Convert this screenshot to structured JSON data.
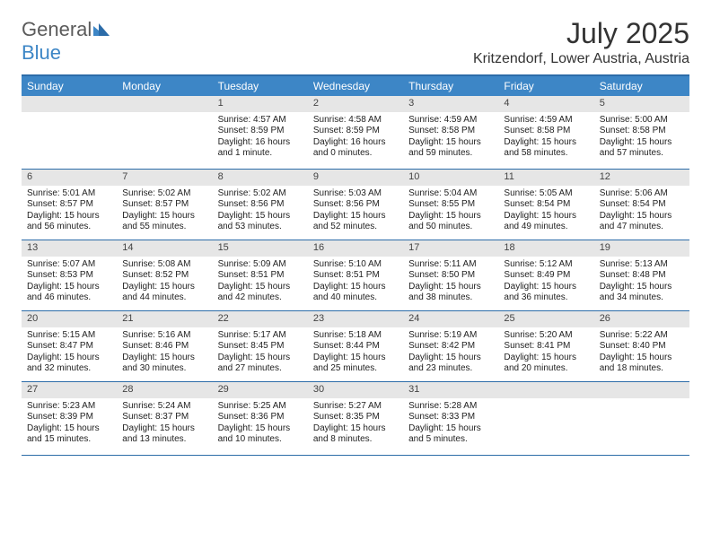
{
  "logo": {
    "word1": "General",
    "word2": "Blue",
    "word1_color": "#5b5b5b",
    "word2_color": "#3d86c6",
    "triangle_color": "#3d86c6"
  },
  "title": "July 2025",
  "location": "Kritzendorf, Lower Austria, Austria",
  "colors": {
    "header_bg": "#3d86c6",
    "header_text": "#ffffff",
    "rule": "#2c6ca8",
    "daynum_bg": "#e6e6e6",
    "body_text": "#222222"
  },
  "daysOfWeek": [
    "Sunday",
    "Monday",
    "Tuesday",
    "Wednesday",
    "Thursday",
    "Friday",
    "Saturday"
  ],
  "weeks": [
    [
      {
        "n": "",
        "sr": "",
        "ss": "",
        "dl": ""
      },
      {
        "n": "",
        "sr": "",
        "ss": "",
        "dl": ""
      },
      {
        "n": "1",
        "sr": "Sunrise: 4:57 AM",
        "ss": "Sunset: 8:59 PM",
        "dl": "Daylight: 16 hours and 1 minute."
      },
      {
        "n": "2",
        "sr": "Sunrise: 4:58 AM",
        "ss": "Sunset: 8:59 PM",
        "dl": "Daylight: 16 hours and 0 minutes."
      },
      {
        "n": "3",
        "sr": "Sunrise: 4:59 AM",
        "ss": "Sunset: 8:58 PM",
        "dl": "Daylight: 15 hours and 59 minutes."
      },
      {
        "n": "4",
        "sr": "Sunrise: 4:59 AM",
        "ss": "Sunset: 8:58 PM",
        "dl": "Daylight: 15 hours and 58 minutes."
      },
      {
        "n": "5",
        "sr": "Sunrise: 5:00 AM",
        "ss": "Sunset: 8:58 PM",
        "dl": "Daylight: 15 hours and 57 minutes."
      }
    ],
    [
      {
        "n": "6",
        "sr": "Sunrise: 5:01 AM",
        "ss": "Sunset: 8:57 PM",
        "dl": "Daylight: 15 hours and 56 minutes."
      },
      {
        "n": "7",
        "sr": "Sunrise: 5:02 AM",
        "ss": "Sunset: 8:57 PM",
        "dl": "Daylight: 15 hours and 55 minutes."
      },
      {
        "n": "8",
        "sr": "Sunrise: 5:02 AM",
        "ss": "Sunset: 8:56 PM",
        "dl": "Daylight: 15 hours and 53 minutes."
      },
      {
        "n": "9",
        "sr": "Sunrise: 5:03 AM",
        "ss": "Sunset: 8:56 PM",
        "dl": "Daylight: 15 hours and 52 minutes."
      },
      {
        "n": "10",
        "sr": "Sunrise: 5:04 AM",
        "ss": "Sunset: 8:55 PM",
        "dl": "Daylight: 15 hours and 50 minutes."
      },
      {
        "n": "11",
        "sr": "Sunrise: 5:05 AM",
        "ss": "Sunset: 8:54 PM",
        "dl": "Daylight: 15 hours and 49 minutes."
      },
      {
        "n": "12",
        "sr": "Sunrise: 5:06 AM",
        "ss": "Sunset: 8:54 PM",
        "dl": "Daylight: 15 hours and 47 minutes."
      }
    ],
    [
      {
        "n": "13",
        "sr": "Sunrise: 5:07 AM",
        "ss": "Sunset: 8:53 PM",
        "dl": "Daylight: 15 hours and 46 minutes."
      },
      {
        "n": "14",
        "sr": "Sunrise: 5:08 AM",
        "ss": "Sunset: 8:52 PM",
        "dl": "Daylight: 15 hours and 44 minutes."
      },
      {
        "n": "15",
        "sr": "Sunrise: 5:09 AM",
        "ss": "Sunset: 8:51 PM",
        "dl": "Daylight: 15 hours and 42 minutes."
      },
      {
        "n": "16",
        "sr": "Sunrise: 5:10 AM",
        "ss": "Sunset: 8:51 PM",
        "dl": "Daylight: 15 hours and 40 minutes."
      },
      {
        "n": "17",
        "sr": "Sunrise: 5:11 AM",
        "ss": "Sunset: 8:50 PM",
        "dl": "Daylight: 15 hours and 38 minutes."
      },
      {
        "n": "18",
        "sr": "Sunrise: 5:12 AM",
        "ss": "Sunset: 8:49 PM",
        "dl": "Daylight: 15 hours and 36 minutes."
      },
      {
        "n": "19",
        "sr": "Sunrise: 5:13 AM",
        "ss": "Sunset: 8:48 PM",
        "dl": "Daylight: 15 hours and 34 minutes."
      }
    ],
    [
      {
        "n": "20",
        "sr": "Sunrise: 5:15 AM",
        "ss": "Sunset: 8:47 PM",
        "dl": "Daylight: 15 hours and 32 minutes."
      },
      {
        "n": "21",
        "sr": "Sunrise: 5:16 AM",
        "ss": "Sunset: 8:46 PM",
        "dl": "Daylight: 15 hours and 30 minutes."
      },
      {
        "n": "22",
        "sr": "Sunrise: 5:17 AM",
        "ss": "Sunset: 8:45 PM",
        "dl": "Daylight: 15 hours and 27 minutes."
      },
      {
        "n": "23",
        "sr": "Sunrise: 5:18 AM",
        "ss": "Sunset: 8:44 PM",
        "dl": "Daylight: 15 hours and 25 minutes."
      },
      {
        "n": "24",
        "sr": "Sunrise: 5:19 AM",
        "ss": "Sunset: 8:42 PM",
        "dl": "Daylight: 15 hours and 23 minutes."
      },
      {
        "n": "25",
        "sr": "Sunrise: 5:20 AM",
        "ss": "Sunset: 8:41 PM",
        "dl": "Daylight: 15 hours and 20 minutes."
      },
      {
        "n": "26",
        "sr": "Sunrise: 5:22 AM",
        "ss": "Sunset: 8:40 PM",
        "dl": "Daylight: 15 hours and 18 minutes."
      }
    ],
    [
      {
        "n": "27",
        "sr": "Sunrise: 5:23 AM",
        "ss": "Sunset: 8:39 PM",
        "dl": "Daylight: 15 hours and 15 minutes."
      },
      {
        "n": "28",
        "sr": "Sunrise: 5:24 AM",
        "ss": "Sunset: 8:37 PM",
        "dl": "Daylight: 15 hours and 13 minutes."
      },
      {
        "n": "29",
        "sr": "Sunrise: 5:25 AM",
        "ss": "Sunset: 8:36 PM",
        "dl": "Daylight: 15 hours and 10 minutes."
      },
      {
        "n": "30",
        "sr": "Sunrise: 5:27 AM",
        "ss": "Sunset: 8:35 PM",
        "dl": "Daylight: 15 hours and 8 minutes."
      },
      {
        "n": "31",
        "sr": "Sunrise: 5:28 AM",
        "ss": "Sunset: 8:33 PM",
        "dl": "Daylight: 15 hours and 5 minutes."
      },
      {
        "n": "",
        "sr": "",
        "ss": "",
        "dl": ""
      },
      {
        "n": "",
        "sr": "",
        "ss": "",
        "dl": ""
      }
    ]
  ]
}
